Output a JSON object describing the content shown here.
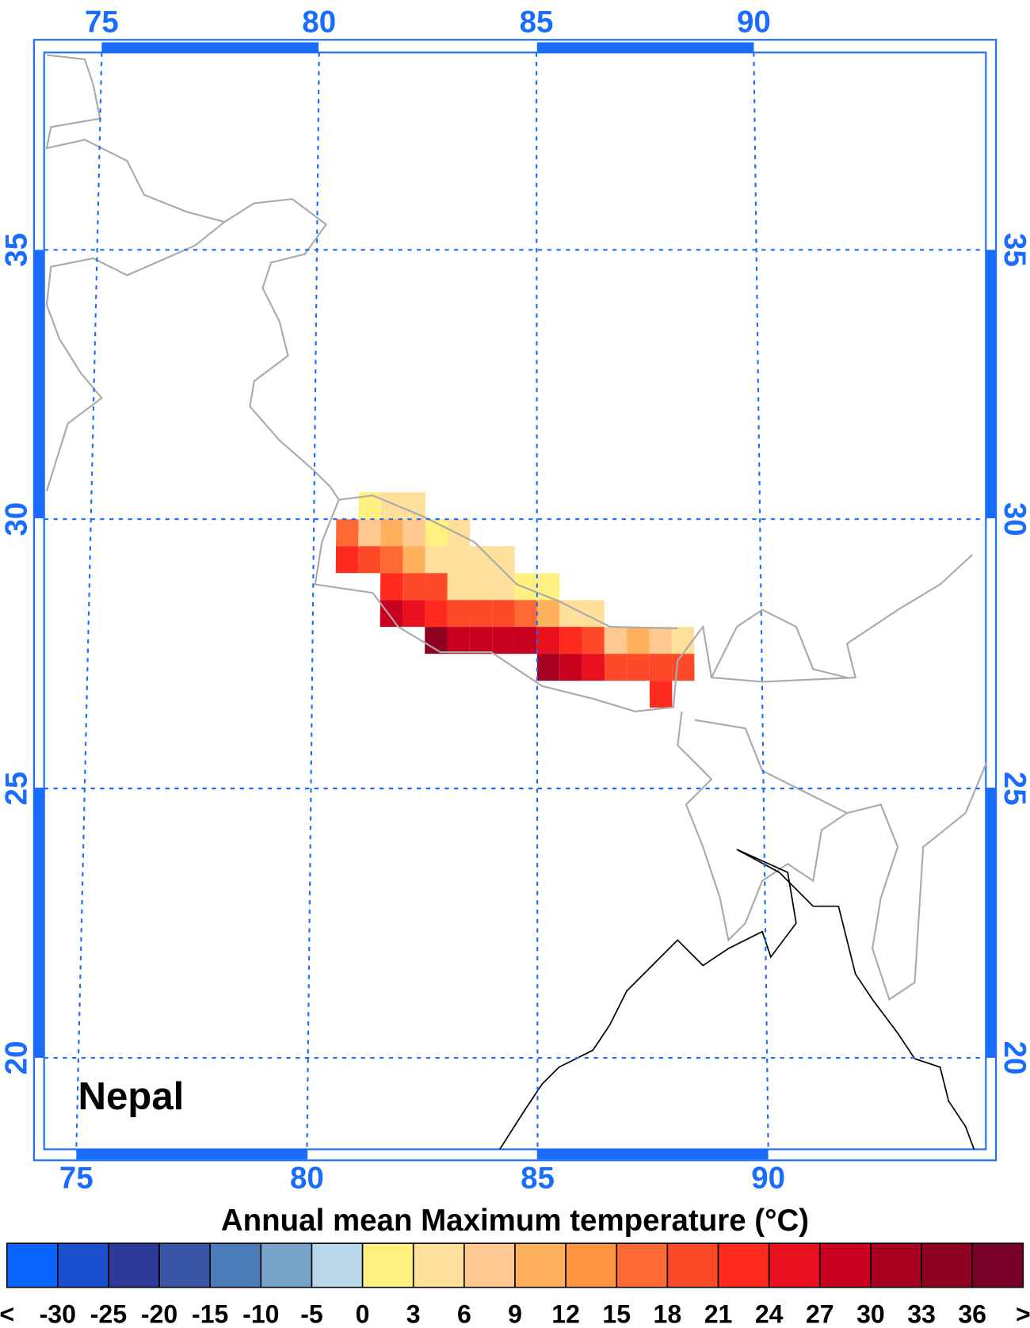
{
  "map_label": "Nepal",
  "lon_ticks": [
    75,
    80,
    85,
    90
  ],
  "lat_ticks": [
    20,
    25,
    30,
    35
  ],
  "colorbar": {
    "title": "Annual mean Maximum temperature (°C)",
    "low_label": "<",
    "high_label": ">",
    "levels": [
      -30,
      -25,
      -20,
      -15,
      -10,
      -5,
      0,
      3,
      6,
      9,
      12,
      15,
      18,
      21,
      24,
      27,
      30,
      33,
      36
    ],
    "colors": [
      "#0a64ff",
      "#1a4fd0",
      "#2e3a9a",
      "#3a55a5",
      "#4a7ab8",
      "#78a4cc",
      "#b8d8ea",
      "#fff080",
      "#ffe09a",
      "#ffc890",
      "#ffb05a",
      "#ff9540",
      "#ff6a34",
      "#ff4a2a",
      "#ff2a1e",
      "#e8101e",
      "#c8001e",
      "#a80020",
      "#900020",
      "#7a0028"
    ]
  },
  "cells": [
    {
      "lon": 81,
      "lat": 30,
      "value": 2
    },
    {
      "lon": 81.5,
      "lat": 30,
      "value": 5
    },
    {
      "lon": 82,
      "lat": 30,
      "value": 5
    },
    {
      "lon": 80.5,
      "lat": 29.5,
      "value": 17
    },
    {
      "lon": 81,
      "lat": 29.5,
      "value": 8
    },
    {
      "lon": 81.5,
      "lat": 29.5,
      "value": 11
    },
    {
      "lon": 82,
      "lat": 29.5,
      "value": 8
    },
    {
      "lon": 82.5,
      "lat": 29.5,
      "value": 2
    },
    {
      "lon": 83,
      "lat": 29.5,
      "value": 5
    },
    {
      "lon": 80.5,
      "lat": 29,
      "value": 22
    },
    {
      "lon": 81,
      "lat": 29,
      "value": 19
    },
    {
      "lon": 81.5,
      "lat": 29,
      "value": 17
    },
    {
      "lon": 82,
      "lat": 29,
      "value": 11
    },
    {
      "lon": 82.5,
      "lat": 29,
      "value": 5
    },
    {
      "lon": 83,
      "lat": 29,
      "value": 5
    },
    {
      "lon": 83.5,
      "lat": 29,
      "value": 5
    },
    {
      "lon": 84,
      "lat": 29,
      "value": 5
    },
    {
      "lon": 81.5,
      "lat": 28.5,
      "value": 22
    },
    {
      "lon": 82,
      "lat": 28.5,
      "value": 20
    },
    {
      "lon": 82.5,
      "lat": 28.5,
      "value": 18
    },
    {
      "lon": 83,
      "lat": 28.5,
      "value": 5
    },
    {
      "lon": 83.5,
      "lat": 28.5,
      "value": 5
    },
    {
      "lon": 84,
      "lat": 28.5,
      "value": 5
    },
    {
      "lon": 84.5,
      "lat": 28.5,
      "value": 2
    },
    {
      "lon": 85,
      "lat": 28.5,
      "value": 2
    },
    {
      "lon": 81.5,
      "lat": 28,
      "value": 29
    },
    {
      "lon": 82,
      "lat": 28,
      "value": 26
    },
    {
      "lon": 82.5,
      "lat": 28,
      "value": 23
    },
    {
      "lon": 83,
      "lat": 28,
      "value": 20
    },
    {
      "lon": 83.5,
      "lat": 28,
      "value": 20
    },
    {
      "lon": 84,
      "lat": 28,
      "value": 20
    },
    {
      "lon": 84.5,
      "lat": 28,
      "value": 17
    },
    {
      "lon": 85,
      "lat": 28,
      "value": 11
    },
    {
      "lon": 85.5,
      "lat": 28,
      "value": 5
    },
    {
      "lon": 86,
      "lat": 28,
      "value": 5
    },
    {
      "lon": 82.5,
      "lat": 27.5,
      "value": 35
    },
    {
      "lon": 83,
      "lat": 27.5,
      "value": 29
    },
    {
      "lon": 83.5,
      "lat": 27.5,
      "value": 29
    },
    {
      "lon": 84,
      "lat": 27.5,
      "value": 29
    },
    {
      "lon": 84.5,
      "lat": 27.5,
      "value": 29
    },
    {
      "lon": 85,
      "lat": 27.5,
      "value": 26
    },
    {
      "lon": 85.5,
      "lat": 27.5,
      "value": 23
    },
    {
      "lon": 86,
      "lat": 27.5,
      "value": 20
    },
    {
      "lon": 86.5,
      "lat": 27.5,
      "value": 8
    },
    {
      "lon": 87,
      "lat": 27.5,
      "value": 11
    },
    {
      "lon": 87.5,
      "lat": 27.5,
      "value": 8
    },
    {
      "lon": 88,
      "lat": 27.5,
      "value": 5
    },
    {
      "lon": 85,
      "lat": 27,
      "value": 31
    },
    {
      "lon": 85.5,
      "lat": 27,
      "value": 28
    },
    {
      "lon": 86,
      "lat": 27,
      "value": 25
    },
    {
      "lon": 86.5,
      "lat": 27,
      "value": 20
    },
    {
      "lon": 87,
      "lat": 27,
      "value": 20
    },
    {
      "lon": 87.5,
      "lat": 27,
      "value": 20
    },
    {
      "lon": 88,
      "lat": 27,
      "value": 20
    },
    {
      "lon": 87.5,
      "lat": 26.5,
      "value": 23
    }
  ]
}
